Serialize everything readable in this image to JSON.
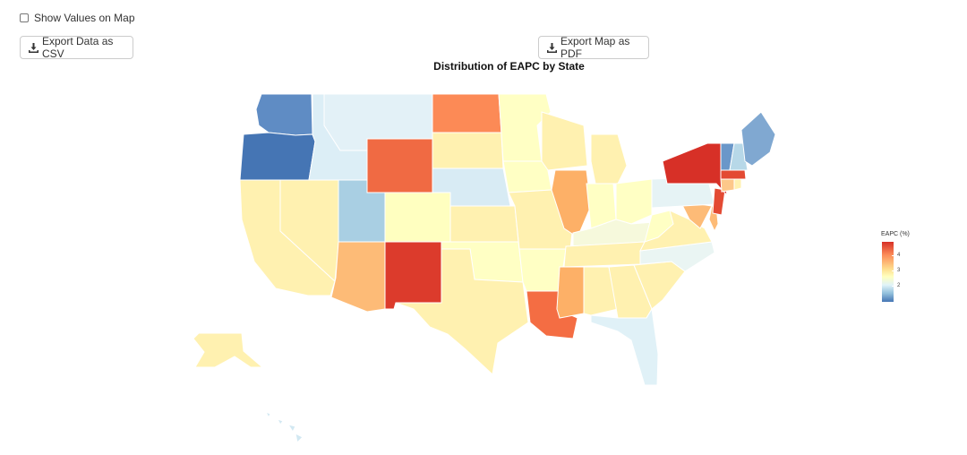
{
  "controls": {
    "show_values_label": "Show Values on Map",
    "show_values_checked": false,
    "export_csv_label": "Export Data as CSV",
    "export_pdf_label": "Export Map as PDF",
    "download_icon": "download-icon"
  },
  "map": {
    "title": "Distribution of EAPC by State",
    "legend": {
      "title": "EAPC (%)",
      "ticks": [
        "4",
        "3",
        "2"
      ],
      "colors": {
        "high": "#d73027",
        "mid_high": "#fc8d59",
        "mid": "#ffffbf",
        "mid_low": "#e0f3f8",
        "low": "#4575b4"
      }
    },
    "states": [
      {
        "id": "WA",
        "color": "#5f8cc4"
      },
      {
        "id": "OR",
        "color": "#4575b4"
      },
      {
        "id": "CA",
        "color": "#fff1b0"
      },
      {
        "id": "NV",
        "color": "#fff1b0"
      },
      {
        "id": "ID",
        "color": "#dceef6"
      },
      {
        "id": "MT",
        "color": "#e3f1f7"
      },
      {
        "id": "WY",
        "color": "#f06a43"
      },
      {
        "id": "UT",
        "color": "#a9cfe3"
      },
      {
        "id": "CO",
        "color": "#ffffc0"
      },
      {
        "id": "AZ",
        "color": "#fdbb77"
      },
      {
        "id": "NM",
        "color": "#dc3b2c"
      },
      {
        "id": "ND",
        "color": "#fc8a56"
      },
      {
        "id": "SD",
        "color": "#fff1b0"
      },
      {
        "id": "NE",
        "color": "#d8ebf4"
      },
      {
        "id": "KS",
        "color": "#fff1b0"
      },
      {
        "id": "OK",
        "color": "#ffffc4"
      },
      {
        "id": "TX",
        "color": "#fff1b0"
      },
      {
        "id": "MN",
        "color": "#ffffc4"
      },
      {
        "id": "IA",
        "color": "#ffffc4"
      },
      {
        "id": "MO",
        "color": "#fff1b0"
      },
      {
        "id": "AR",
        "color": "#ffffc4"
      },
      {
        "id": "LA",
        "color": "#f46d43"
      },
      {
        "id": "WI",
        "color": "#fff1b0"
      },
      {
        "id": "IL",
        "color": "#fdb067"
      },
      {
        "id": "MI",
        "color": "#fff1b0"
      },
      {
        "id": "IN",
        "color": "#ffffc4"
      },
      {
        "id": "OH",
        "color": "#ffffc4"
      },
      {
        "id": "KY",
        "color": "#f6f9dc"
      },
      {
        "id": "TN",
        "color": "#fff1b0"
      },
      {
        "id": "MS",
        "color": "#fdb067"
      },
      {
        "id": "AL",
        "color": "#fff1b0"
      },
      {
        "id": "GA",
        "color": "#fff1b0"
      },
      {
        "id": "FL",
        "color": "#e0f1f7"
      },
      {
        "id": "SC",
        "color": "#fff1b0"
      },
      {
        "id": "NC",
        "color": "#eaf5f3"
      },
      {
        "id": "VA",
        "color": "#fff1b0"
      },
      {
        "id": "WV",
        "color": "#ffffc4"
      },
      {
        "id": "MD",
        "color": "#fdbb77"
      },
      {
        "id": "DE",
        "color": "#fdbb77"
      },
      {
        "id": "PA",
        "color": "#e6f3f5"
      },
      {
        "id": "NJ",
        "color": "#e34a33"
      },
      {
        "id": "NY",
        "color": "#d73027"
      },
      {
        "id": "CT",
        "color": "#fdc88a"
      },
      {
        "id": "RI",
        "color": "#fff1b0"
      },
      {
        "id": "MA",
        "color": "#e34a33"
      },
      {
        "id": "VT",
        "color": "#6a97c9"
      },
      {
        "id": "NH",
        "color": "#b7d8e8"
      },
      {
        "id": "ME",
        "color": "#80a8d1"
      },
      {
        "id": "AK",
        "color": "#fff1b0"
      },
      {
        "id": "HI",
        "color": "#d2e8f2"
      }
    ]
  }
}
